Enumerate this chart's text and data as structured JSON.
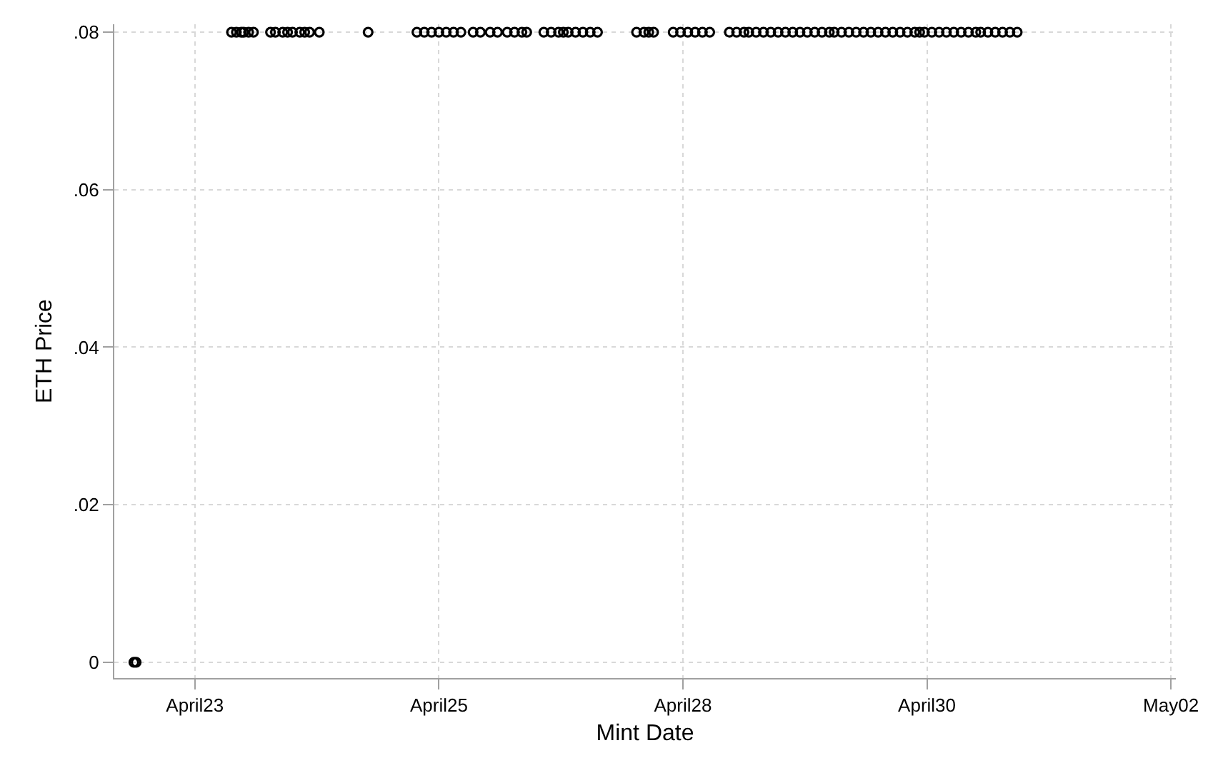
{
  "chart_data": {
    "type": "scatter",
    "xlabel": "Mint Date",
    "ylabel": "ETH Price",
    "x": [
      "--04-22T22:30",
      "--04-22T23:00",
      "--04-23T20:06",
      "--04-23T21:11",
      "--04-23T22:16",
      "--04-23T22:48",
      "--04-23T23:53",
      "--04-24T00:58",
      "--04-24T04:44",
      "--04-24T05:49",
      "--04-24T07:26",
      "--04-24T08:31",
      "--04-24T09:36",
      "--04-24T11:13",
      "--04-24T12:18",
      "--04-24T13:23",
      "--04-24T15:32",
      "--04-25T02:20",
      "--04-25T13:08",
      "--04-25T14:46",
      "--04-25T16:23",
      "--04-25T18:00",
      "--04-25T19:37",
      "--04-25T21:14",
      "--04-25T22:52",
      "--04-26T01:34",
      "--04-26T03:11",
      "--04-26T05:20",
      "--04-26T06:58",
      "--04-26T09:07",
      "--04-26T10:44",
      "--04-26T12:22",
      "--04-26T13:26",
      "--04-26T17:13",
      "--04-26T18:50",
      "--04-26T20:28",
      "--04-26T21:32",
      "--04-26T22:37",
      "--04-27T00:14",
      "--04-27T01:52",
      "--04-27T03:29",
      "--04-27T05:06",
      "--04-27T13:44",
      "--04-27T15:22",
      "--04-27T16:26",
      "--04-27T17:31",
      "--04-27T21:50",
      "--04-27T23:28",
      "--04-28T01:05",
      "--04-28T02:42",
      "--04-28T04:19",
      "--04-28T05:56",
      "--04-28T10:16",
      "--04-28T11:53",
      "--04-28T13:30",
      "--04-28T14:35",
      "--04-28T16:12",
      "--04-28T17:49",
      "--04-28T19:26",
      "--04-28T21:04",
      "--04-28T22:41",
      "--04-29T00:18",
      "--04-29T01:55",
      "--04-29T03:32",
      "--04-29T05:10",
      "--04-29T06:47",
      "--04-29T08:24",
      "--04-29T09:29",
      "--04-29T11:06",
      "--04-29T12:43",
      "--04-29T14:20",
      "--04-29T15:58",
      "--04-29T17:35",
      "--04-29T19:12",
      "--04-29T20:49",
      "--04-29T22:26",
      "--04-30T00:04",
      "--04-30T01:41",
      "--04-30T03:18",
      "--04-30T04:23",
      "--04-30T05:28",
      "--04-30T07:05",
      "--04-30T08:42",
      "--04-30T10:19",
      "--04-30T11:56",
      "--04-30T13:34",
      "--04-30T15:11",
      "--04-30T16:48",
      "--04-30T17:53",
      "--04-30T19:30",
      "--04-30T21:07",
      "--04-30T22:44",
      "--05-01T00:22",
      "--05-01T01:59"
    ],
    "series": [
      {
        "color": "#000000",
        "values": [
          0,
          0,
          0.08,
          0.08,
          0.08,
          0.08,
          0.08,
          0.08,
          0.08,
          0.08,
          0.08,
          0.08,
          0.08,
          0.08,
          0.08,
          0.08,
          0.08,
          0.08,
          0.08,
          0.08,
          0.08,
          0.08,
          0.08,
          0.08,
          0.08,
          0.08,
          0.08,
          0.08,
          0.08,
          0.08,
          0.08,
          0.08,
          0.08,
          0.08,
          0.08,
          0.08,
          0.08,
          0.08,
          0.08,
          0.08,
          0.08,
          0.08,
          0.08,
          0.08,
          0.08,
          0.08,
          0.08,
          0.08,
          0.08,
          0.08,
          0.08,
          0.08,
          0.08,
          0.08,
          0.08,
          0.08,
          0.08,
          0.08,
          0.08,
          0.08,
          0.08,
          0.08,
          0.08,
          0.08,
          0.08,
          0.08,
          0.08,
          0.08,
          0.08,
          0.08,
          0.08,
          0.08,
          0.08,
          0.08,
          0.08,
          0.08,
          0.08,
          0.08,
          0.08,
          0.08,
          0.08,
          0.08,
          0.08,
          0.08,
          0.08,
          0.08,
          0.08,
          0.08,
          0.08,
          0.08,
          0.08,
          0.08,
          0.08,
          0.08
        ]
      }
    ],
    "xlim": [
      "--04-22T18:10",
      "--05-02T13:05"
    ],
    "xticks": [
      {
        "value": "--04-23T12:00",
        "label": "April23"
      },
      {
        "value": "--04-25T18:00",
        "label": "April25"
      },
      {
        "value": "--04-28T00:00",
        "label": "April28"
      },
      {
        "value": "--04-30T06:00",
        "label": "April30"
      },
      {
        "value": "--05-02T12:00",
        "label": "May02"
      }
    ],
    "ylim": [
      -0.002,
      0.081
    ],
    "yticks": [
      0,
      {
        "value": 0.02,
        "label": ".02"
      },
      {
        "value": 0.04,
        "label": ".04"
      },
      {
        "value": 0.06,
        "label": ".06"
      },
      {
        "value": 0.08,
        "label": ".08"
      }
    ],
    "grid": true,
    "marker": "circle"
  }
}
